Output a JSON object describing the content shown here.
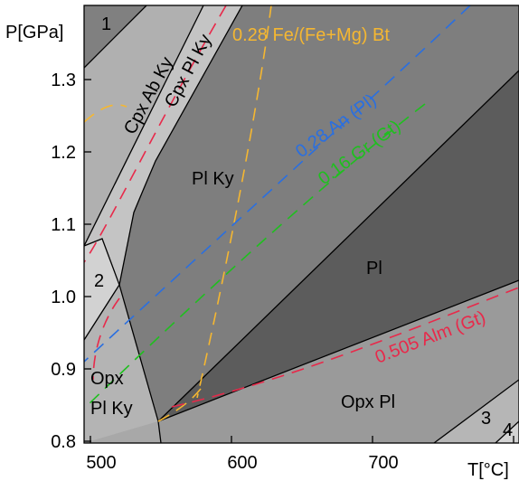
{
  "axes": {
    "y_label": "P[GPa]",
    "x_label": "T[°C]",
    "y_ticks": [
      "1.3",
      "1.2",
      "1.1",
      "1.0",
      "0.9",
      "0.8"
    ],
    "x_ticks": [
      "500",
      "600",
      "700"
    ]
  },
  "fields": {
    "f1": "1",
    "f2": "2",
    "f3": "3",
    "f4": "4",
    "cpx_ab_ky": "Cpx Ab Ky",
    "cpx_pl_ky": "Cpx Pl Ky",
    "pl_ky": "Pl Ky",
    "pl": "Pl",
    "opx_pl_ky_1": "Opx",
    "opx_pl_ky_2": "Pl Ky",
    "opx_pl": "Opx Pl"
  },
  "isopleths": {
    "bt": {
      "label": "0.28 Fe/(Fe+Mg) Bt",
      "color": "#f5b731"
    },
    "an": {
      "label": "0.28 An (Pl)",
      "color": "#2a6fe0"
    },
    "gr": {
      "label": "0.16 Gr (Gt)",
      "color": "#1fbf1f"
    },
    "alm": {
      "label": "0.505 Alm (Gt)",
      "color": "#e8294a"
    }
  },
  "colors": {
    "shade_light": "#d2d2d2",
    "shade_mid": "#a8a8a8",
    "shade_dark": "#808080",
    "shade_darkest": "#575757"
  }
}
